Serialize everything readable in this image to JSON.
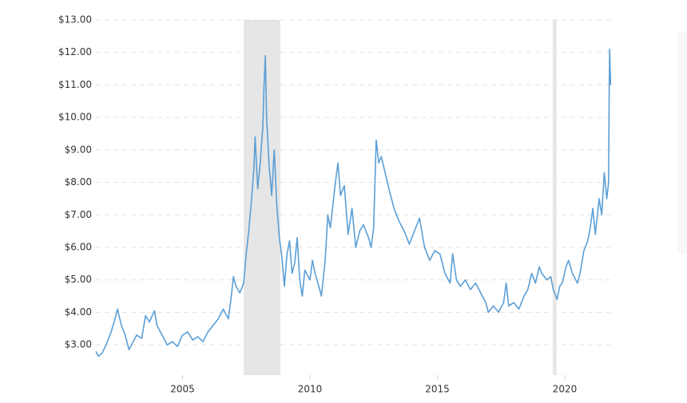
{
  "chart_data": {
    "type": "line",
    "x": [
      2001.6,
      2001.7,
      2001.85,
      2002.0,
      2002.2,
      2002.35,
      2002.45,
      2002.6,
      2002.75,
      2002.9,
      2003.0,
      2003.2,
      2003.4,
      2003.55,
      2003.7,
      2003.9,
      2004.0,
      2004.2,
      2004.4,
      2004.6,
      2004.8,
      2005.0,
      2005.2,
      2005.4,
      2005.6,
      2005.8,
      2006.0,
      2006.2,
      2006.4,
      2006.6,
      2006.8,
      2006.9,
      2007.0,
      2007.1,
      2007.25,
      2007.4,
      2007.5,
      2007.6,
      2007.7,
      2007.8,
      2007.85,
      2007.95,
      2008.05,
      2008.15,
      2008.2,
      2008.25,
      2008.3,
      2008.4,
      2008.5,
      2008.6,
      2008.7,
      2008.8,
      2008.9,
      2009.0,
      2009.1,
      2009.2,
      2009.3,
      2009.4,
      2009.5,
      2009.6,
      2009.7,
      2009.8,
      2010.0,
      2010.1,
      2010.2,
      2010.35,
      2010.45,
      2010.6,
      2010.7,
      2010.8,
      2010.9,
      2011.0,
      2011.1,
      2011.2,
      2011.35,
      2011.5,
      2011.65,
      2011.8,
      2011.95,
      2012.1,
      2012.3,
      2012.4,
      2012.5,
      2012.6,
      2012.7,
      2012.8,
      2012.95,
      2013.1,
      2013.3,
      2013.5,
      2013.7,
      2013.9,
      2014.1,
      2014.3,
      2014.5,
      2014.7,
      2014.9,
      2015.1,
      2015.3,
      2015.5,
      2015.6,
      2015.75,
      2015.9,
      2016.1,
      2016.3,
      2016.5,
      2016.7,
      2016.9,
      2017.0,
      2017.2,
      2017.4,
      2017.6,
      2017.7,
      2017.8,
      2018.0,
      2018.2,
      2018.4,
      2018.55,
      2018.7,
      2018.85,
      2019.0,
      2019.1,
      2019.3,
      2019.45,
      2019.55,
      2019.7,
      2019.8,
      2019.9,
      2020.05,
      2020.15,
      2020.3,
      2020.5,
      2020.6,
      2020.75,
      2020.9,
      2021.0,
      2021.1,
      2021.2,
      2021.35,
      2021.45,
      2021.55,
      2021.65,
      2021.72,
      2021.74,
      2021.76,
      2021.8
    ],
    "series": [
      {
        "color": "#5b9fd6",
        "values": [
          2.8,
          2.65,
          2.75,
          3.0,
          3.4,
          3.8,
          4.1,
          3.6,
          3.3,
          2.85,
          3.0,
          3.3,
          3.2,
          3.9,
          3.7,
          4.05,
          3.6,
          3.3,
          3.0,
          3.1,
          2.95,
          3.3,
          3.4,
          3.15,
          3.25,
          3.1,
          3.4,
          3.6,
          3.8,
          4.1,
          3.8,
          4.4,
          5.1,
          4.8,
          4.6,
          4.9,
          5.8,
          6.5,
          7.4,
          8.4,
          9.4,
          7.8,
          8.6,
          9.7,
          11.0,
          11.9,
          10.0,
          8.5,
          7.6,
          9.0,
          7.3,
          6.3,
          5.7,
          4.8,
          5.8,
          6.2,
          5.2,
          5.5,
          6.3,
          5.0,
          4.5,
          5.3,
          5.0,
          5.6,
          5.2,
          4.8,
          4.5,
          5.6,
          7.0,
          6.6,
          7.3,
          8.0,
          8.6,
          7.6,
          7.9,
          6.4,
          7.2,
          6.0,
          6.5,
          6.7,
          6.3,
          6.0,
          6.6,
          9.3,
          8.6,
          8.8,
          8.3,
          7.8,
          7.2,
          6.8,
          6.5,
          6.1,
          6.5,
          6.9,
          6.0,
          5.6,
          5.9,
          5.8,
          5.2,
          4.9,
          5.8,
          5.0,
          4.8,
          5.0,
          4.7,
          4.9,
          4.6,
          4.3,
          4.0,
          4.2,
          4.0,
          4.3,
          4.9,
          4.2,
          4.3,
          4.1,
          4.5,
          4.7,
          5.2,
          4.9,
          5.4,
          5.2,
          5.0,
          5.1,
          4.7,
          4.4,
          4.8,
          4.9,
          5.4,
          5.6,
          5.2,
          4.9,
          5.2,
          5.9,
          6.2,
          6.6,
          7.2,
          6.4,
          7.5,
          7.0,
          8.3,
          7.5,
          8.0,
          10.5,
          12.1,
          11.0
        ]
      }
    ],
    "shaded_ranges": [
      [
        2007.4,
        2008.84
      ],
      [
        2019.53,
        2019.68
      ]
    ],
    "xlim": [
      2001.6,
      2021.85
    ],
    "xticks": [
      2005,
      2010,
      2015,
      2020
    ],
    "ylim": [
      2.07,
      13
    ],
    "yticks": [
      {
        "value": 3,
        "label": "$3.00"
      },
      {
        "value": 4,
        "label": "$4.00"
      },
      {
        "value": 5,
        "label": "$5.00"
      },
      {
        "value": 6,
        "label": "$6.00"
      },
      {
        "value": 7,
        "label": "$7.00"
      },
      {
        "value": 8,
        "label": "$8.00"
      },
      {
        "value": 9,
        "label": "$9.00"
      },
      {
        "value": 10,
        "label": "$10.00"
      },
      {
        "value": 11,
        "label": "$11.00"
      },
      {
        "value": 12,
        "label": "$12.00"
      },
      {
        "value": 13,
        "label": "$13.00"
      }
    ],
    "grid": true
  }
}
